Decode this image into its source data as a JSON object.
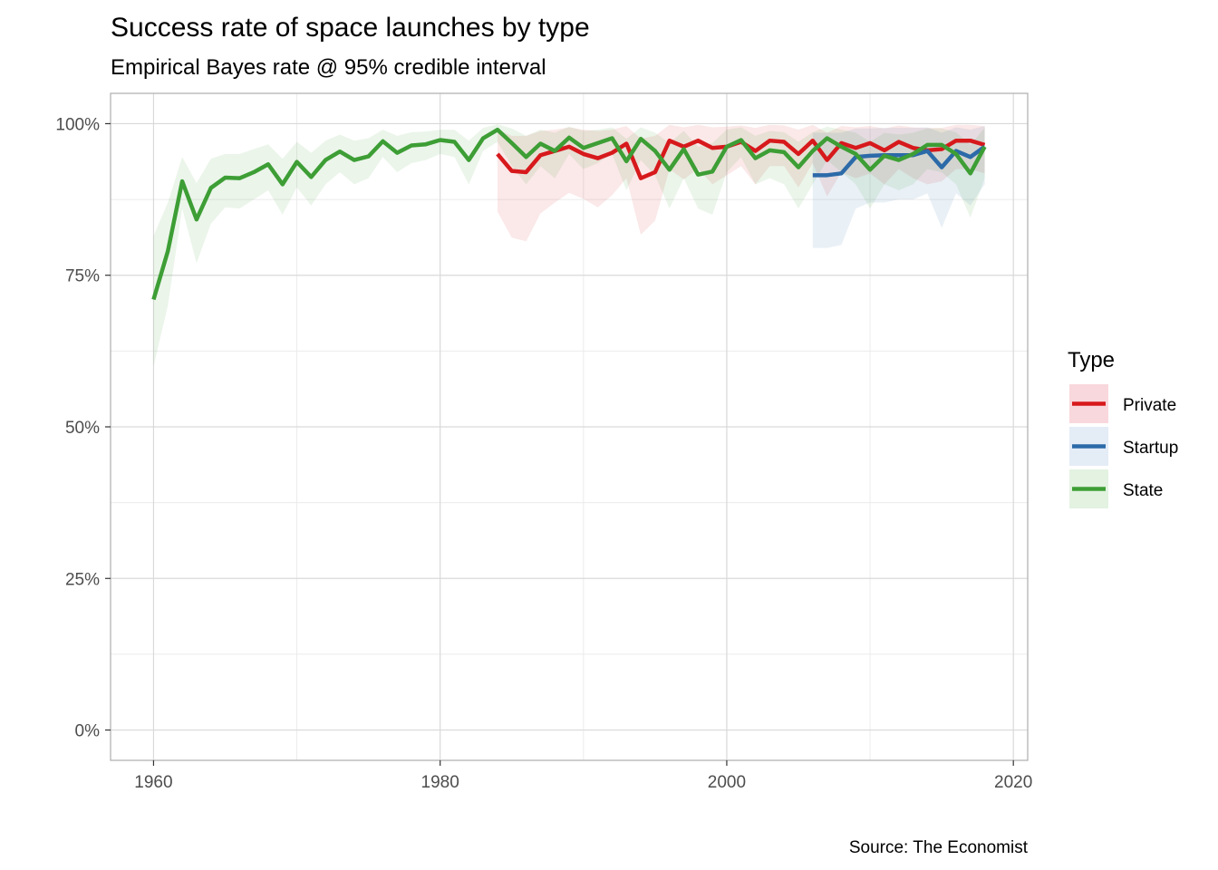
{
  "chart_data": {
    "type": "line",
    "title": "Success rate of space launches by type",
    "subtitle": "Empirical Bayes rate @ 95% credible interval",
    "caption": "Source: The Economist",
    "xlabel": "",
    "ylabel": "",
    "xlim": [
      1957,
      2021
    ],
    "ylim": [
      -0.05,
      1.05
    ],
    "x_ticks": [
      1960,
      1980,
      2000,
      2020
    ],
    "y_ticks": [
      0,
      0.25,
      0.5,
      0.75,
      1.0
    ],
    "x_tick_labels": [
      "1960",
      "1980",
      "2000",
      "2020"
    ],
    "y_tick_labels": [
      "0%",
      "25%",
      "50%",
      "75%",
      "100%"
    ],
    "grid": true,
    "legend": {
      "title": "Type",
      "position": "right"
    },
    "series": [
      {
        "name": "Private",
        "color": "#d7191c",
        "fill": "#f8d8dc",
        "x": [
          1984,
          1985,
          1986,
          1987,
          1988,
          1989,
          1990,
          1991,
          1992,
          1993,
          1994,
          1995,
          1996,
          1997,
          1998,
          1999,
          2000,
          2001,
          2002,
          2003,
          2004,
          2005,
          2006,
          2007,
          2008,
          2009,
          2010,
          2011,
          2012,
          2013,
          2014,
          2015,
          2016,
          2017,
          2018
        ],
        "y": [
          0.95,
          0.922,
          0.92,
          0.948,
          0.955,
          0.962,
          0.95,
          0.943,
          0.952,
          0.967,
          0.91,
          0.92,
          0.972,
          0.962,
          0.972,
          0.96,
          0.962,
          0.97,
          0.955,
          0.972,
          0.97,
          0.95,
          0.972,
          0.94,
          0.968,
          0.96,
          0.968,
          0.956,
          0.97,
          0.96,
          0.956,
          0.958,
          0.972,
          0.972,
          0.965
        ],
        "lower": [
          0.855,
          0.812,
          0.806,
          0.852,
          0.87,
          0.886,
          0.876,
          0.862,
          0.882,
          0.91,
          0.817,
          0.84,
          0.925,
          0.908,
          0.926,
          0.9,
          0.915,
          0.93,
          0.9,
          0.93,
          0.93,
          0.895,
          0.935,
          0.88,
          0.92,
          0.91,
          0.918,
          0.9,
          0.925,
          0.91,
          0.9,
          0.905,
          0.925,
          0.925,
          0.918
        ],
        "upper": [
          0.99,
          0.98,
          0.98,
          0.988,
          0.99,
          0.994,
          0.99,
          0.988,
          0.99,
          0.996,
          0.975,
          0.98,
          0.998,
          0.994,
          0.998,
          0.994,
          0.995,
          0.997,
          0.993,
          0.998,
          0.997,
          0.99,
          0.998,
          0.985,
          0.996,
          0.994,
          0.996,
          0.992,
          0.997,
          0.994,
          0.993,
          0.993,
          0.998,
          0.998,
          0.996
        ]
      },
      {
        "name": "Startup",
        "color": "#2c6aa8",
        "fill": "#e4ecf6",
        "x": [
          2006,
          2007,
          2008,
          2009,
          2010,
          2011,
          2012,
          2013,
          2014,
          2015,
          2016,
          2017,
          2018
        ],
        "y": [
          0.915,
          0.915,
          0.918,
          0.945,
          0.947,
          0.948,
          0.948,
          0.948,
          0.955,
          0.928,
          0.955,
          0.945,
          0.962
        ],
        "lower": [
          0.795,
          0.795,
          0.8,
          0.86,
          0.87,
          0.87,
          0.875,
          0.875,
          0.885,
          0.828,
          0.885,
          0.865,
          0.9
        ],
        "upper": [
          0.985,
          0.985,
          0.985,
          0.992,
          0.992,
          0.993,
          0.993,
          0.993,
          0.994,
          0.985,
          0.994,
          0.99,
          0.996
        ]
      },
      {
        "name": "State",
        "color": "#3d9e35",
        "fill": "#e3f2e1",
        "x": [
          1960,
          1961,
          1962,
          1963,
          1964,
          1965,
          1966,
          1967,
          1968,
          1969,
          1970,
          1971,
          1972,
          1973,
          1974,
          1975,
          1976,
          1977,
          1978,
          1979,
          1980,
          1981,
          1982,
          1983,
          1984,
          1985,
          1986,
          1987,
          1988,
          1989,
          1990,
          1991,
          1992,
          1993,
          1994,
          1995,
          1996,
          1997,
          1998,
          1999,
          2000,
          2001,
          2002,
          2003,
          2004,
          2005,
          2006,
          2007,
          2008,
          2009,
          2010,
          2011,
          2012,
          2013,
          2014,
          2015,
          2016,
          2017,
          2018
        ],
        "y": [
          0.71,
          0.79,
          0.905,
          0.842,
          0.894,
          0.911,
          0.91,
          0.92,
          0.933,
          0.9,
          0.937,
          0.912,
          0.94,
          0.954,
          0.94,
          0.946,
          0.971,
          0.952,
          0.964,
          0.966,
          0.973,
          0.97,
          0.94,
          0.976,
          0.99,
          0.968,
          0.945,
          0.967,
          0.955,
          0.977,
          0.96,
          0.968,
          0.976,
          0.938,
          0.975,
          0.955,
          0.924,
          0.958,
          0.916,
          0.921,
          0.962,
          0.973,
          0.943,
          0.956,
          0.953,
          0.928,
          0.955,
          0.976,
          0.962,
          0.95,
          0.924,
          0.947,
          0.94,
          0.95,
          0.965,
          0.965,
          0.95,
          0.918,
          0.962
        ],
        "lower": [
          0.6,
          0.7,
          0.86,
          0.77,
          0.835,
          0.862,
          0.86,
          0.875,
          0.89,
          0.85,
          0.895,
          0.865,
          0.9,
          0.92,
          0.9,
          0.91,
          0.945,
          0.92,
          0.935,
          0.94,
          0.95,
          0.945,
          0.9,
          0.955,
          0.97,
          0.93,
          0.9,
          0.93,
          0.91,
          0.95,
          0.925,
          0.935,
          0.95,
          0.89,
          0.94,
          0.915,
          0.86,
          0.91,
          0.86,
          0.85,
          0.92,
          0.945,
          0.9,
          0.91,
          0.9,
          0.86,
          0.9,
          0.94,
          0.92,
          0.9,
          0.86,
          0.9,
          0.89,
          0.9,
          0.925,
          0.92,
          0.9,
          0.845,
          0.91
        ],
        "upper": [
          0.815,
          0.87,
          0.945,
          0.902,
          0.942,
          0.95,
          0.95,
          0.958,
          0.966,
          0.942,
          0.97,
          0.952,
          0.972,
          0.982,
          0.972,
          0.976,
          0.99,
          0.98,
          0.986,
          0.987,
          0.99,
          0.99,
          0.972,
          0.993,
          0.999,
          0.992,
          0.98,
          0.99,
          0.985,
          0.995,
          0.988,
          0.99,
          0.994,
          0.975,
          0.994,
          0.985,
          0.968,
          0.988,
          0.962,
          0.968,
          0.99,
          0.994,
          0.98,
          0.988,
          0.986,
          0.97,
          0.986,
          0.995,
          0.99,
          0.985,
          0.97,
          0.985,
          0.982,
          0.985,
          0.992,
          0.992,
          0.986,
          0.965,
          0.993
        ]
      }
    ]
  }
}
